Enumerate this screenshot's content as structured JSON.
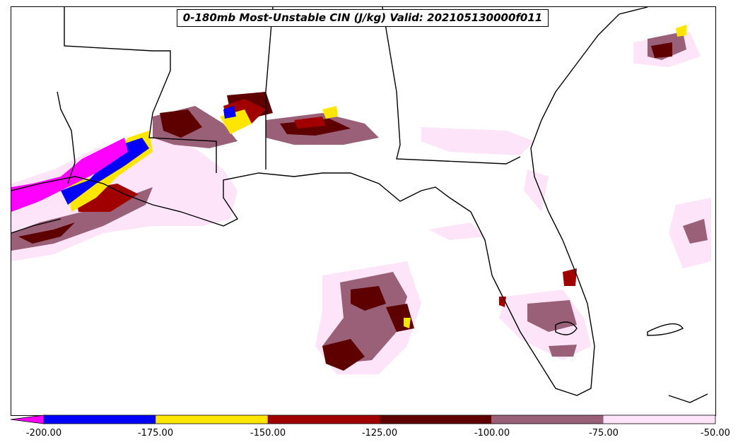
{
  "title": "0-180mb Most-Unstable CIN (J/kg) Valid: 202105130000f011",
  "colorbar": {
    "tick_labels": [
      "-200.00",
      "-175.00",
      "-150.00",
      "-125.00",
      "-100.00",
      "-75.00",
      "-50.00"
    ],
    "bins": [
      {
        "range": "< -200",
        "color": "#ff00ff"
      },
      {
        "range": "-200 to -175",
        "color": "#0000ff"
      },
      {
        "range": "-175 to -150",
        "color": "#ffe600"
      },
      {
        "range": "-150 to -125",
        "color": "#a00000"
      },
      {
        "range": "-125 to -100",
        "color": "#5e0000"
      },
      {
        "range": "-100 to -75",
        "color": "#9a6078"
      },
      {
        "range": "-75 to -50",
        "color": "#fde4f8"
      }
    ]
  },
  "map": {
    "region": "US Gulf Coast and Florida",
    "features": [
      "state boundaries",
      "coastlines",
      "CIN shaded fields"
    ]
  }
}
